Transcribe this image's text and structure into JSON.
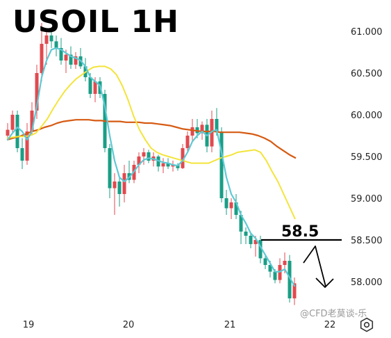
{
  "chart_data": {
    "type": "candlestick",
    "title": "USOIL 1H",
    "y_ticks": [
      "61.000",
      "60.500",
      "60.000",
      "59.500",
      "59.000",
      "58.500",
      "58.000"
    ],
    "y_tick_values": [
      61.0,
      60.5,
      60.0,
      59.5,
      59.0,
      58.5,
      58.0
    ],
    "x_ticks": [
      "19",
      "20",
      "21",
      "22"
    ],
    "ylim": [
      57.65,
      61.25
    ],
    "annotation_level": 58.5,
    "annotation_label": "58.5",
    "annotation_arrow": "down",
    "colors": {
      "up": "#e04a4f",
      "down": "#1a9e86",
      "ma_fast": "#5ec9d4",
      "ma_mid": "#f3e43a",
      "ma_slow": "#d65a12"
    },
    "ohlc": [
      [
        59.75,
        59.9,
        59.7,
        59.82
      ],
      [
        59.82,
        60.05,
        59.78,
        60.0
      ],
      [
        60.0,
        60.05,
        59.55,
        59.6
      ],
      [
        59.6,
        59.72,
        59.35,
        59.45
      ],
      [
        59.45,
        59.9,
        59.4,
        59.8
      ],
      [
        59.8,
        60.15,
        59.75,
        60.05
      ],
      [
        60.05,
        60.6,
        59.95,
        60.5
      ],
      [
        60.5,
        61.1,
        60.4,
        60.85
      ],
      [
        60.85,
        61.0,
        60.6,
        60.95
      ],
      [
        60.95,
        61.0,
        60.8,
        60.88
      ],
      [
        60.88,
        60.95,
        60.7,
        60.8
      ],
      [
        60.8,
        60.92,
        60.6,
        60.65
      ],
      [
        60.65,
        60.78,
        60.5,
        60.72
      ],
      [
        60.72,
        60.82,
        60.55,
        60.6
      ],
      [
        60.6,
        60.75,
        60.55,
        60.7
      ],
      [
        60.7,
        60.8,
        60.55,
        60.58
      ],
      [
        60.58,
        60.68,
        60.4,
        60.45
      ],
      [
        60.45,
        60.5,
        60.2,
        60.25
      ],
      [
        60.25,
        60.45,
        60.15,
        60.4
      ],
      [
        60.4,
        60.45,
        60.2,
        60.25
      ],
      [
        60.25,
        60.3,
        59.55,
        59.6
      ],
      [
        59.6,
        59.65,
        59.0,
        59.12
      ],
      [
        59.12,
        59.3,
        58.8,
        59.2
      ],
      [
        59.2,
        59.25,
        58.9,
        59.05
      ],
      [
        59.05,
        59.4,
        58.95,
        59.3
      ],
      [
        59.3,
        59.45,
        59.18,
        59.22
      ],
      [
        59.22,
        59.45,
        59.18,
        59.4
      ],
      [
        59.4,
        59.55,
        59.3,
        59.5
      ],
      [
        59.5,
        59.6,
        59.4,
        59.55
      ],
      [
        59.55,
        59.58,
        59.42,
        59.45
      ],
      [
        59.45,
        59.55,
        59.38,
        59.5
      ],
      [
        59.5,
        59.52,
        59.32,
        59.38
      ],
      [
        59.38,
        59.48,
        59.3,
        59.42
      ],
      [
        59.42,
        59.48,
        59.35,
        59.38
      ],
      [
        59.38,
        59.45,
        59.32,
        59.4
      ],
      [
        59.4,
        59.42,
        59.33,
        59.36
      ],
      [
        59.36,
        59.65,
        59.35,
        59.6
      ],
      [
        59.6,
        59.8,
        59.55,
        59.75
      ],
      [
        59.75,
        59.95,
        59.68,
        59.85
      ],
      [
        59.85,
        59.95,
        59.72,
        59.78
      ],
      [
        59.78,
        59.92,
        59.7,
        59.88
      ],
      [
        59.88,
        59.95,
        59.55,
        59.62
      ],
      [
        59.62,
        60.05,
        59.55,
        59.95
      ],
      [
        59.95,
        60.08,
        59.75,
        59.8
      ],
      [
        59.8,
        59.85,
        58.95,
        59.0
      ],
      [
        59.0,
        59.1,
        58.8,
        58.88
      ],
      [
        58.88,
        59.0,
        58.75,
        58.95
      ],
      [
        58.95,
        59.05,
        58.75,
        58.8
      ],
      [
        58.8,
        58.85,
        58.45,
        58.6
      ],
      [
        58.6,
        58.65,
        58.45,
        58.55
      ],
      [
        58.55,
        58.58,
        58.4,
        58.45
      ],
      [
        58.45,
        58.55,
        58.3,
        58.5
      ],
      [
        58.5,
        58.55,
        58.22,
        58.28
      ],
      [
        58.28,
        58.32,
        58.15,
        58.2
      ],
      [
        58.2,
        58.25,
        58.05,
        58.12
      ],
      [
        58.12,
        58.15,
        57.98,
        58.02
      ],
      [
        58.02,
        58.28,
        57.98,
        58.2
      ],
      [
        58.2,
        58.35,
        58.1,
        58.25
      ],
      [
        58.25,
        58.32,
        57.75,
        57.8
      ],
      [
        57.8,
        58.05,
        57.72,
        57.98
      ]
    ],
    "ma_fast": [
      59.7,
      59.78,
      59.85,
      59.8,
      59.7,
      59.8,
      60.1,
      60.45,
      60.65,
      60.78,
      60.8,
      60.78,
      60.74,
      60.7,
      60.68,
      60.65,
      60.58,
      60.45,
      60.4,
      60.35,
      60.1,
      59.75,
      59.45,
      59.25,
      59.2,
      59.25,
      59.32,
      59.4,
      59.46,
      59.48,
      59.47,
      59.45,
      59.43,
      59.42,
      59.4,
      59.39,
      59.45,
      59.55,
      59.68,
      59.75,
      59.8,
      59.75,
      59.8,
      59.82,
      59.55,
      59.25,
      59.05,
      58.95,
      58.8,
      58.7,
      58.58,
      58.52,
      58.42,
      58.32,
      58.22,
      58.12,
      58.12,
      58.15,
      58.05,
      57.95
    ],
    "ma_mid": [
      59.72,
      59.73,
      59.74,
      59.74,
      59.75,
      59.78,
      59.86,
      59.95,
      60.07,
      60.18,
      60.28,
      60.36,
      60.43,
      60.48,
      60.53,
      60.57,
      60.58,
      60.58,
      60.55,
      60.48,
      60.35,
      60.18,
      59.98,
      59.82,
      59.7,
      59.6,
      59.55,
      59.52,
      59.5,
      59.48,
      59.46,
      59.44,
      59.42,
      59.42,
      59.42,
      59.42,
      59.45,
      59.48,
      59.5,
      59.52,
      59.55,
      59.56,
      59.57,
      59.58,
      59.55,
      59.45,
      59.32,
      59.2,
      59.05,
      58.9,
      58.75
    ],
    "ma_slow": [
      59.7,
      59.72,
      59.74,
      59.77,
      59.8,
      59.82,
      59.85,
      59.87,
      59.9,
      59.92,
      59.93,
      59.94,
      59.94,
      59.94,
      59.93,
      59.93,
      59.92,
      59.92,
      59.92,
      59.91,
      59.91,
      59.91,
      59.9,
      59.9,
      59.89,
      59.88,
      59.87,
      59.85,
      59.83,
      59.82,
      59.81,
      59.8,
      59.8,
      59.8,
      59.79,
      59.79,
      59.79,
      59.79,
      59.78,
      59.77,
      59.75,
      59.72,
      59.68,
      59.62,
      59.57,
      59.52,
      59.48
    ]
  },
  "ui": {
    "title": "USOIL 1H",
    "watermark": "@CFD老莫谈-乐",
    "settings_icon": "hexagon-gear-icon"
  }
}
